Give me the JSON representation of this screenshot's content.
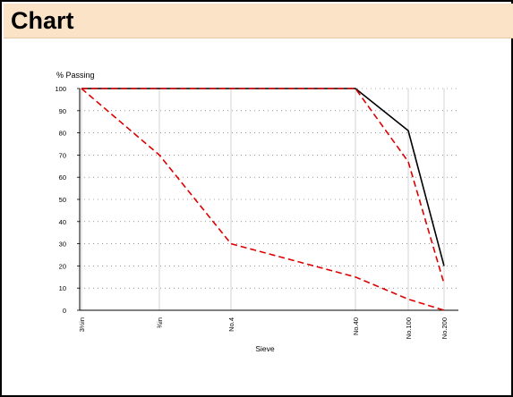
{
  "header": {
    "title": "Chart"
  },
  "chart_data": {
    "type": "line",
    "ylabel": "% Passing",
    "xlabel": "Sieve",
    "ylim": [
      0,
      100
    ],
    "yticks": [
      0,
      10,
      20,
      30,
      40,
      50,
      60,
      70,
      80,
      90,
      100
    ],
    "x_scale": "log (sieve opening)",
    "categories": [
      "3½in",
      "¾in",
      "No.4",
      "No.40",
      "No.100",
      "No.200"
    ],
    "grid": {
      "x": true,
      "y": "dotted"
    },
    "series": [
      {
        "color": "#000000",
        "dash": "solid",
        "values": [
          100,
          100,
          100,
          100,
          81,
          20
        ]
      },
      {
        "color": "#dd0000",
        "dash": "dashed",
        "values": [
          100,
          100,
          100,
          100,
          67,
          12
        ]
      },
      {
        "color": "#dd0000",
        "dash": "dashed",
        "values": [
          100,
          70,
          30,
          15,
          5,
          0
        ]
      }
    ]
  }
}
